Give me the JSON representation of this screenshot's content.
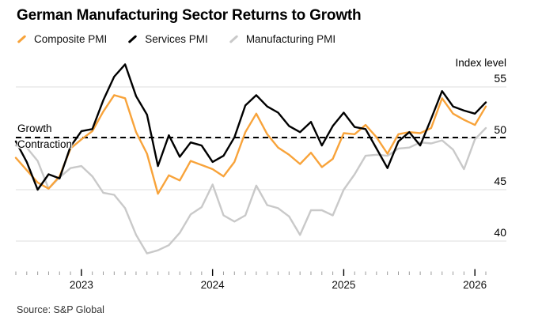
{
  "title": "German Manufacturing Sector Returns to Growth",
  "legend": [
    {
      "label": "Composite PMI",
      "color": "#F8A33A"
    },
    {
      "label": "Services PMI",
      "color": "#000000"
    },
    {
      "label": "Manufacturing PMI",
      "color": "#C9C9C9"
    }
  ],
  "annotations": {
    "above_line": "Growth",
    "below_line": "Contraction"
  },
  "y_axis": {
    "title": "Index level",
    "ticks": [
      55,
      50,
      45,
      40
    ]
  },
  "x_axis": {
    "year_labels": [
      "2023",
      "2024",
      "2025",
      "2026"
    ]
  },
  "source": "Source: S&P Global",
  "colors": {
    "background": "#FFFFFF",
    "gridline": "#DEDEDE",
    "dashed_line": "#000000",
    "tick_minor": "#9B9B9B",
    "tick_major": "#000000"
  },
  "chart_data": {
    "type": "line",
    "title": "German Manufacturing Sector Returns to Growth",
    "ylabel": "Index level",
    "ylim": [
      37,
      58
    ],
    "gridlines_at": [
      40,
      45,
      50,
      55
    ],
    "grid": "horizontal-only",
    "legend_position": "top-left",
    "reference_line": {
      "value": 50,
      "style": "dashed",
      "label_above": "Growth",
      "label_below": "Contraction"
    },
    "x_months": [
      "2022-07",
      "2022-08",
      "2022-09",
      "2022-10",
      "2022-11",
      "2022-12",
      "2023-01",
      "2023-02",
      "2023-03",
      "2023-04",
      "2023-05",
      "2023-06",
      "2023-07",
      "2023-08",
      "2023-09",
      "2023-10",
      "2023-11",
      "2023-12",
      "2024-01",
      "2024-02",
      "2024-03",
      "2024-04",
      "2024-05",
      "2024-06",
      "2024-07",
      "2024-08",
      "2024-09",
      "2024-10",
      "2024-11",
      "2024-12",
      "2025-01",
      "2025-02",
      "2025-03",
      "2025-04",
      "2025-05",
      "2025-06",
      "2025-07",
      "2025-08",
      "2025-09",
      "2025-10",
      "2025-11",
      "2025-12",
      "2026-01",
      "2026-02"
    ],
    "series": [
      {
        "name": "Composite PMI",
        "color": "#F8A33A",
        "values": [
          48.1,
          46.9,
          45.7,
          45.1,
          46.3,
          49.0,
          49.9,
          50.7,
          52.6,
          54.2,
          53.9,
          50.6,
          48.5,
          44.6,
          46.4,
          45.9,
          47.8,
          47.4,
          47.0,
          46.3,
          47.7,
          50.6,
          52.4,
          50.4,
          49.1,
          48.4,
          47.5,
          48.6,
          47.2,
          48.0,
          50.5,
          50.4,
          51.3,
          50.1,
          48.5,
          50.4,
          50.6,
          50.5,
          51.0,
          53.9,
          52.4,
          51.8,
          51.3,
          53.1
        ]
      },
      {
        "name": "Services PMI",
        "color": "#000000",
        "values": [
          49.7,
          47.7,
          45.0,
          46.5,
          46.1,
          49.2,
          50.7,
          50.9,
          53.7,
          56.0,
          57.2,
          54.1,
          52.3,
          47.3,
          50.3,
          48.2,
          49.6,
          49.3,
          47.7,
          48.3,
          50.1,
          53.2,
          54.2,
          53.1,
          52.5,
          51.2,
          50.6,
          51.6,
          49.3,
          51.2,
          52.5,
          51.1,
          50.9,
          49.0,
          47.1,
          49.7,
          50.6,
          49.3,
          51.9,
          54.6,
          53.1,
          52.7,
          52.4,
          53.5
        ]
      },
      {
        "name": "Manufacturing PMI",
        "color": "#C9C9C9",
        "values": [
          49.3,
          49.1,
          47.8,
          45.1,
          46.2,
          47.1,
          47.3,
          46.3,
          44.7,
          44.5,
          43.2,
          40.6,
          38.8,
          39.1,
          39.6,
          40.8,
          42.6,
          43.3,
          45.5,
          42.5,
          41.9,
          42.5,
          45.4,
          43.5,
          43.2,
          42.4,
          40.6,
          43.0,
          43.0,
          42.5,
          45.0,
          46.5,
          48.3,
          48.4,
          48.3,
          49.0,
          49.1,
          49.6,
          49.5,
          49.8,
          48.9,
          47.0,
          49.9,
          51.0
        ]
      }
    ]
  }
}
